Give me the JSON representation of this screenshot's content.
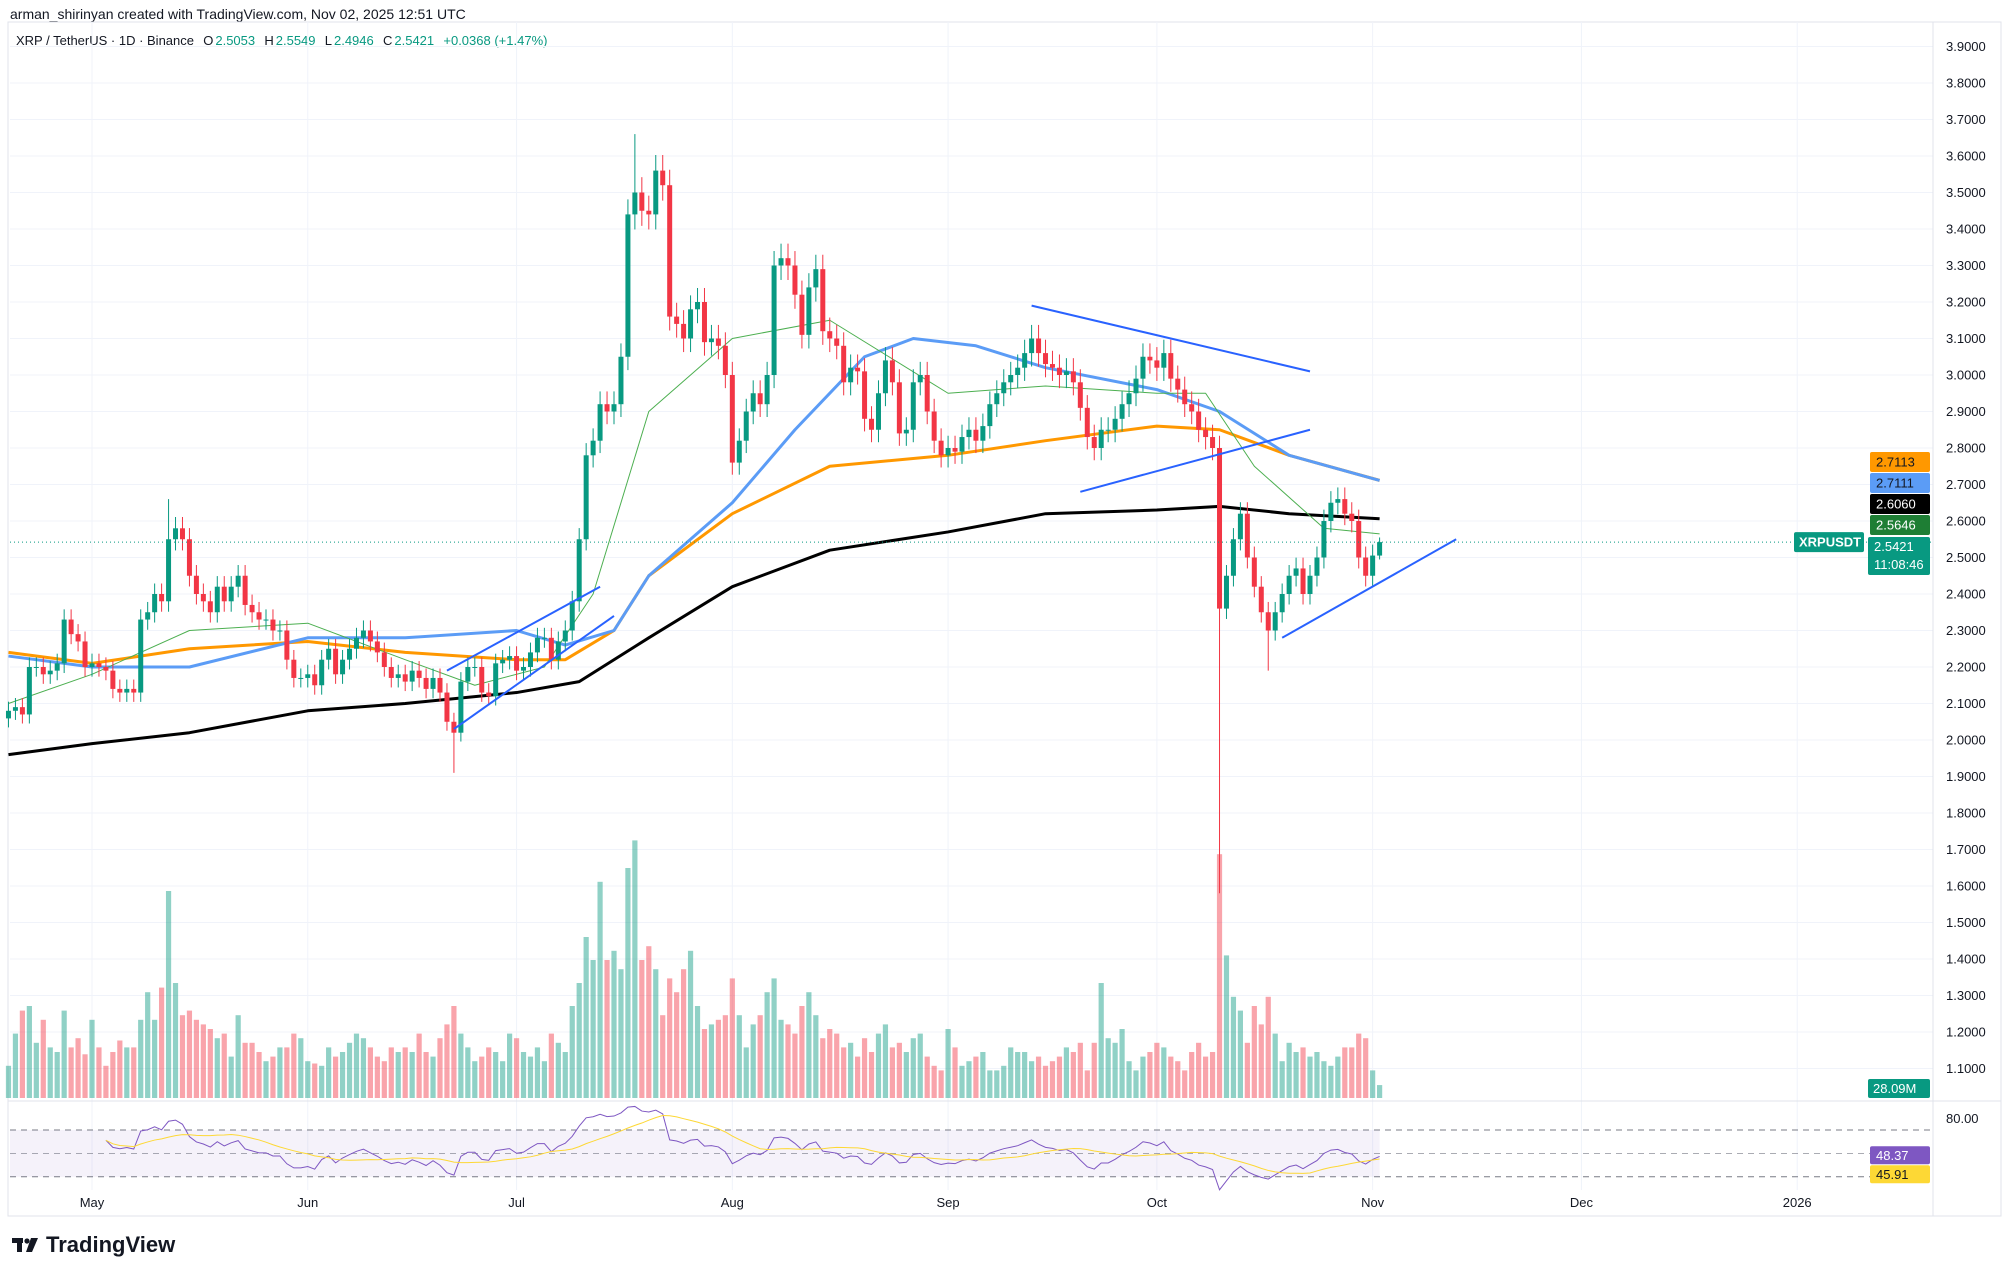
{
  "header": {
    "credit": "arman_shirinyan created with TradingView.com, Nov 02, 2025 12:51 UTC",
    "symbol": "XRP / TetherUS · 1D · Binance",
    "o_label": "O",
    "o": "2.5053",
    "h_label": "H",
    "h": "2.5549",
    "l_label": "L",
    "l": "2.4946",
    "c_label": "C",
    "c": "2.5421",
    "change": "+0.0368 (+1.47%)"
  },
  "brand": {
    "name": "TradingView"
  },
  "colors": {
    "up": "#089981",
    "down": "#f23645",
    "ma_fast": "#4caf50",
    "ma_blue": "#5b9cf6",
    "ma_orange": "#ff9800",
    "ma_black": "#000000",
    "trendline": "#2962ff",
    "rsi": "#7e57c2",
    "rsi_ma": "#fdd835"
  },
  "chart_data": {
    "type": "candlestick",
    "symbol": "XRPUSDT",
    "start_date": "2025-04-19",
    "ylim": [
      1.1,
      3.9
    ],
    "yticks": [
      "3.9000",
      "3.8000",
      "3.7000",
      "3.6000",
      "3.5000",
      "3.4000",
      "3.3000",
      "3.2000",
      "3.1000",
      "3.0000",
      "2.9000",
      "2.8000",
      "2.7000",
      "2.6000",
      "2.5000",
      "2.4000",
      "2.3000",
      "2.2000",
      "2.1000",
      "2.0000",
      "1.9000",
      "1.8000",
      "1.7000",
      "1.6000",
      "1.5000",
      "1.4000",
      "1.3000",
      "1.2000",
      "1.1000"
    ],
    "xticks": [
      {
        "label": "May",
        "date": "2025-05-01"
      },
      {
        "label": "Jun",
        "date": "2025-06-01"
      },
      {
        "label": "Jul",
        "date": "2025-07-01"
      },
      {
        "label": "Aug",
        "date": "2025-08-01"
      },
      {
        "label": "Sep",
        "date": "2025-09-01"
      },
      {
        "label": "Oct",
        "date": "2025-10-01"
      },
      {
        "label": "Nov",
        "date": "2025-11-01"
      },
      {
        "label": "Dec",
        "date": "2025-12-01"
      },
      {
        "label": "2026",
        "date": "2026-01-01"
      }
    ],
    "closes": [
      2.08,
      2.09,
      2.07,
      2.2,
      2.2,
      2.18,
      2.19,
      2.21,
      2.33,
      2.29,
      2.27,
      2.2,
      2.21,
      2.2,
      2.19,
      2.14,
      2.13,
      2.14,
      2.13,
      2.33,
      2.35,
      2.4,
      2.38,
      2.55,
      2.58,
      2.55,
      2.45,
      2.4,
      2.38,
      2.35,
      2.42,
      2.38,
      2.42,
      2.45,
      2.37,
      2.35,
      2.33,
      2.33,
      2.3,
      2.3,
      2.22,
      2.17,
      2.17,
      2.18,
      2.15,
      2.22,
      2.25,
      2.18,
      2.22,
      2.25,
      2.28,
      2.3,
      2.27,
      2.24,
      2.2,
      2.17,
      2.18,
      2.16,
      2.19,
      2.17,
      2.14,
      2.17,
      2.13,
      2.05,
      2.02,
      2.16,
      2.2,
      2.2,
      2.13,
      2.12,
      2.21,
      2.22,
      2.23,
      2.19,
      2.2,
      2.24,
      2.28,
      2.28,
      2.22,
      2.27,
      2.3,
      2.38,
      2.55,
      2.78,
      2.82,
      2.92,
      2.9,
      2.92,
      3.05,
      3.44,
      3.5,
      3.45,
      3.44,
      3.56,
      3.52,
      3.16,
      3.14,
      3.1,
      3.18,
      3.2,
      3.09,
      3.1,
      3.08,
      3.0,
      2.76,
      2.82,
      2.9,
      2.95,
      2.92,
      3.0,
      3.3,
      3.32,
      3.3,
      3.22,
      3.11,
      3.24,
      3.29,
      3.12,
      3.1,
      3.08,
      2.98,
      3.02,
      3.01,
      2.88,
      2.85,
      2.95,
      3.04,
      2.98,
      2.84,
      2.85,
      2.98,
      3.0,
      2.9,
      2.82,
      2.78,
      2.8,
      2.79,
      2.83,
      2.85,
      2.82,
      2.86,
      2.92,
      2.95,
      2.98,
      3.0,
      3.02,
      3.06,
      3.1,
      3.06,
      3.03,
      3.02,
      3.0,
      3.01,
      2.98,
      2.91,
      2.83,
      2.8,
      2.85,
      2.85,
      2.88,
      2.92,
      2.95,
      2.99,
      3.05,
      3.04,
      3.02,
      3.06,
      2.99,
      2.96,
      2.92,
      2.9,
      2.85,
      2.83,
      2.8,
      2.36,
      2.45,
      2.55,
      2.62,
      2.5,
      2.42,
      2.35,
      2.3,
      2.35,
      2.4,
      2.45,
      2.47,
      2.4,
      2.45,
      2.5,
      2.6,
      2.65,
      2.66,
      2.62,
      2.6,
      2.5,
      2.45,
      2.5053,
      2.5421
    ],
    "last_candle": {
      "open": 2.5053,
      "high": 2.5549,
      "low": 2.4946,
      "close": 2.5421
    },
    "notable_wicks": [
      {
        "date": "2025-10-10",
        "low": 1.58
      },
      {
        "date": "2025-06-22",
        "low": 1.91
      },
      {
        "date": "2025-07-18",
        "high": 3.66
      },
      {
        "date": "2025-05-12",
        "high": 2.66
      },
      {
        "date": "2025-10-17",
        "low": 2.19
      }
    ],
    "volume_unit": "M",
    "volumes": [
      70,
      140,
      190,
      200,
      120,
      170,
      110,
      100,
      190,
      110,
      130,
      95,
      170,
      110,
      70,
      100,
      125,
      110,
      110,
      170,
      230,
      170,
      240,
      450,
      250,
      180,
      190,
      170,
      160,
      150,
      130,
      140,
      90,
      180,
      120,
      120,
      100,
      80,
      90,
      110,
      110,
      140,
      130,
      80,
      75,
      70,
      110,
      90,
      100,
      120,
      140,
      130,
      110,
      90,
      80,
      110,
      100,
      110,
      100,
      140,
      100,
      90,
      130,
      160,
      200,
      140,
      110,
      80,
      90,
      110,
      100,
      80,
      140,
      130,
      100,
      90,
      110,
      80,
      140,
      120,
      100,
      200,
      250,
      350,
      300,
      470,
      300,
      320,
      280,
      500,
      560,
      300,
      330,
      280,
      180,
      260,
      230,
      280,
      320,
      200,
      150,
      160,
      170,
      180,
      260,
      180,
      110,
      160,
      180,
      230,
      260,
      170,
      160,
      140,
      200,
      230,
      180,
      130,
      150,
      140,
      110,
      120,
      90,
      130,
      100,
      140,
      160,
      110,
      120,
      100,
      130,
      140,
      90,
      70,
      60,
      150,
      110,
      70,
      80,
      90,
      100,
      60,
      60,
      70,
      110,
      100,
      100,
      80,
      90,
      70,
      80,
      90,
      110,
      100,
      120,
      60,
      120,
      250,
      130,
      120,
      150,
      80,
      60,
      90,
      100,
      120,
      110,
      90,
      80,
      60,
      100,
      120,
      90,
      100,
      530,
      310,
      220,
      190,
      120,
      200,
      160,
      220,
      140,
      80,
      120,
      100,
      110,
      90,
      100,
      80,
      70,
      90,
      110,
      110,
      140,
      130,
      60,
      28.09
    ],
    "moving_averages": [
      {
        "color": "#000000",
        "last": "2.6060",
        "points": [
          [
            "2025-04-19",
            1.96
          ],
          [
            "2025-05-01",
            1.99
          ],
          [
            "2025-05-15",
            2.02
          ],
          [
            "2025-06-01",
            2.08
          ],
          [
            "2025-06-15",
            2.1
          ],
          [
            "2025-07-01",
            2.13
          ],
          [
            "2025-07-10",
            2.16
          ],
          [
            "2025-07-20",
            2.28
          ],
          [
            "2025-08-01",
            2.42
          ],
          [
            "2025-08-15",
            2.52
          ],
          [
            "2025-09-01",
            2.57
          ],
          [
            "2025-09-15",
            2.62
          ],
          [
            "2025-10-01",
            2.63
          ],
          [
            "2025-10-10",
            2.64
          ],
          [
            "2025-10-20",
            2.62
          ],
          [
            "2025-11-02",
            2.606
          ]
        ]
      },
      {
        "color": "#ff9800",
        "last": "2.7113",
        "points": [
          [
            "2025-04-19",
            2.24
          ],
          [
            "2025-05-01",
            2.21
          ],
          [
            "2025-05-15",
            2.25
          ],
          [
            "2025-06-01",
            2.27
          ],
          [
            "2025-06-15",
            2.24
          ],
          [
            "2025-07-01",
            2.22
          ],
          [
            "2025-07-08",
            2.22
          ],
          [
            "2025-07-15",
            2.3
          ],
          [
            "2025-07-20",
            2.45
          ],
          [
            "2025-08-01",
            2.62
          ],
          [
            "2025-08-15",
            2.75
          ],
          [
            "2025-09-01",
            2.78
          ],
          [
            "2025-09-15",
            2.82
          ],
          [
            "2025-10-01",
            2.86
          ],
          [
            "2025-10-10",
            2.85
          ],
          [
            "2025-10-20",
            2.78
          ],
          [
            "2025-11-02",
            2.7113
          ]
        ]
      },
      {
        "color": "#5b9cf6",
        "last": "2.7111",
        "points": [
          [
            "2025-04-19",
            2.23
          ],
          [
            "2025-05-01",
            2.2
          ],
          [
            "2025-05-15",
            2.2
          ],
          [
            "2025-06-01",
            2.28
          ],
          [
            "2025-06-15",
            2.28
          ],
          [
            "2025-07-01",
            2.3
          ],
          [
            "2025-07-08",
            2.26
          ],
          [
            "2025-07-15",
            2.3
          ],
          [
            "2025-07-20",
            2.45
          ],
          [
            "2025-08-01",
            2.65
          ],
          [
            "2025-08-10",
            2.85
          ],
          [
            "2025-08-20",
            3.05
          ],
          [
            "2025-08-27",
            3.1
          ],
          [
            "2025-09-05",
            3.08
          ],
          [
            "2025-09-15",
            3.02
          ],
          [
            "2025-10-01",
            2.96
          ],
          [
            "2025-10-10",
            2.9
          ],
          [
            "2025-10-20",
            2.78
          ],
          [
            "2025-11-02",
            2.7111
          ]
        ]
      },
      {
        "color": "#4caf50",
        "last": "2.5646",
        "points": [
          [
            "2025-04-19",
            2.1
          ],
          [
            "2025-05-01",
            2.18
          ],
          [
            "2025-05-15",
            2.3
          ],
          [
            "2025-06-01",
            2.32
          ],
          [
            "2025-06-15",
            2.22
          ],
          [
            "2025-06-25",
            2.15
          ],
          [
            "2025-07-05",
            2.2
          ],
          [
            "2025-07-12",
            2.4
          ],
          [
            "2025-07-20",
            2.9
          ],
          [
            "2025-08-01",
            3.1
          ],
          [
            "2025-08-15",
            3.15
          ],
          [
            "2025-09-01",
            2.95
          ],
          [
            "2025-09-15",
            2.97
          ],
          [
            "2025-10-01",
            2.95
          ],
          [
            "2025-10-08",
            2.95
          ],
          [
            "2025-10-15",
            2.75
          ],
          [
            "2025-10-25",
            2.58
          ],
          [
            "2025-11-02",
            2.5646
          ]
        ]
      }
    ],
    "trendlines": [
      [
        [
          "2025-06-22",
          2.03
        ],
        [
          "2025-07-15",
          2.34
        ]
      ],
      [
        [
          "2025-06-21",
          2.19
        ],
        [
          "2025-07-13",
          2.42
        ]
      ],
      [
        [
          "2025-09-13",
          3.19
        ],
        [
          "2025-10-23",
          3.01
        ]
      ],
      [
        [
          "2025-09-20",
          2.68
        ],
        [
          "2025-10-23",
          2.85
        ]
      ],
      [
        [
          "2025-10-19",
          2.28
        ],
        [
          "2025-11-13",
          2.55
        ]
      ]
    ],
    "last_price": "2.5421",
    "countdown": "11:08:46",
    "volume_last": "28.09M",
    "rsi": {
      "tick": "80.00",
      "upper": 70,
      "lower": 30,
      "value": "48.37",
      "ma_value": "45.91"
    }
  }
}
